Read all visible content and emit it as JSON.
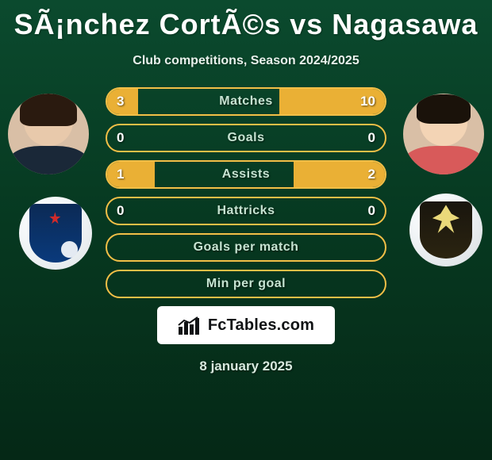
{
  "header": {
    "title": "SÃ¡nchez CortÃ©s vs Nagasawa",
    "subtitle": "Club competitions, Season 2024/2025"
  },
  "players": {
    "left": {
      "name": "Sánchez Cortés"
    },
    "right": {
      "name": "Nagasawa"
    }
  },
  "clubs": {
    "left": {
      "name": "Adelaide United F.C."
    },
    "right": {
      "name": "Wellington Phoenix"
    }
  },
  "stats": {
    "bar_fill_color": "#eab035",
    "border_color": "#f2bf47",
    "label_color": "#c6e3d1",
    "value_color": "#ffffff",
    "rows": [
      {
        "label": "Matches",
        "left": "3",
        "right": "10",
        "left_pct": 11,
        "right_pct": 38
      },
      {
        "label": "Goals",
        "left": "0",
        "right": "0",
        "left_pct": 0,
        "right_pct": 0
      },
      {
        "label": "Assists",
        "left": "1",
        "right": "2",
        "left_pct": 17,
        "right_pct": 33
      },
      {
        "label": "Hattricks",
        "left": "0",
        "right": "0",
        "left_pct": 0,
        "right_pct": 0
      },
      {
        "label": "Goals per match",
        "left": "",
        "right": "",
        "left_pct": 0,
        "right_pct": 0
      },
      {
        "label": "Min per goal",
        "left": "",
        "right": "",
        "left_pct": 0,
        "right_pct": 0
      }
    ]
  },
  "branding": {
    "site_name": "FcTables.com"
  },
  "footer": {
    "date": "8 january 2025"
  },
  "theme": {
    "bg_gradient_top": "#0b4a2e",
    "bg_gradient_mid": "#063820",
    "bg_gradient_bottom": "#052816",
    "title_color": "#ffffff",
    "subtitle_color": "#e8f0eb"
  }
}
